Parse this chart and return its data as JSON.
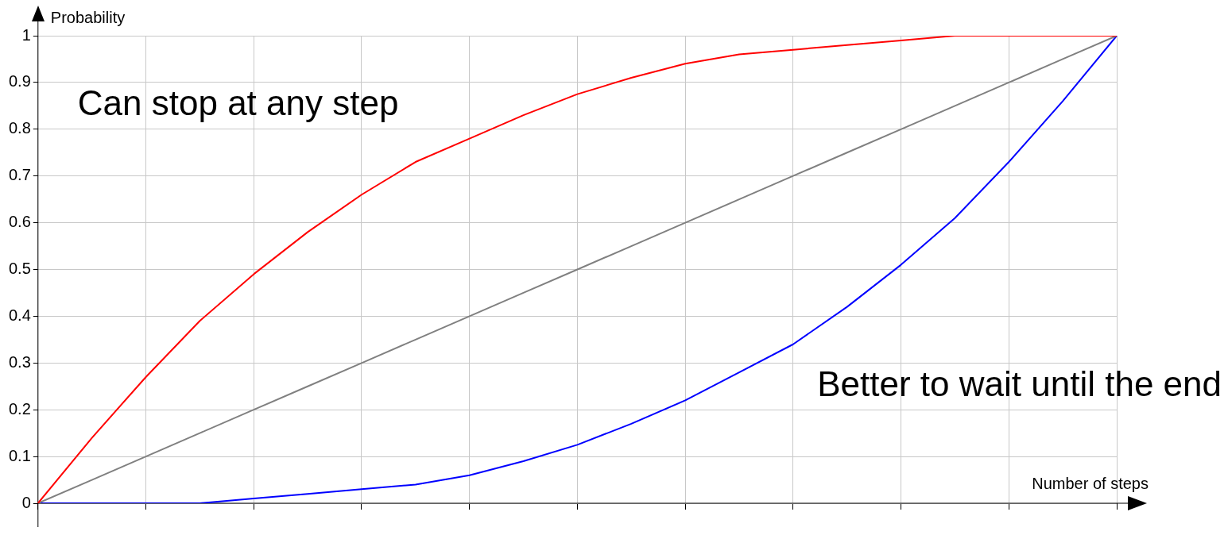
{
  "chart_data": {
    "type": "line",
    "ylabel": "Probability",
    "xlabel": "Number of steps",
    "categories": [
      null,
      null,
      null,
      null,
      null,
      null,
      null,
      null,
      null,
      null,
      null,
      null,
      null,
      null,
      null,
      null,
      null,
      null,
      null,
      null,
      null
    ],
    "series": [
      {
        "color": "#ff0000",
        "values": [
          0,
          0.14,
          0.27,
          0.39,
          0.49,
          0.58,
          0.66,
          0.73,
          0.78,
          0.83,
          0.875,
          0.91,
          0.94,
          0.96,
          0.97,
          0.98,
          0.99,
          1,
          1,
          1,
          1
        ]
      },
      {
        "color": "#808080",
        "values": [
          0,
          0.05,
          0.1,
          0.15,
          0.2,
          0.25,
          0.3,
          0.35,
          0.4,
          0.45,
          0.5,
          0.55,
          0.6,
          0.65,
          0.7,
          0.75,
          0.8,
          0.85,
          0.9,
          0.95,
          1
        ]
      },
      {
        "color": "#0000ff",
        "values": [
          0,
          0,
          0,
          0,
          0.01,
          0.02,
          0.03,
          0.04,
          0.06,
          0.09,
          0.125,
          0.17,
          0.22,
          0.28,
          0.34,
          0.42,
          0.51,
          0.61,
          0.73,
          0.86,
          1
        ]
      }
    ],
    "ylim": [
      0,
      1
    ],
    "yticks": [
      {
        "value": 0,
        "label": "0"
      },
      0.1,
      0.2,
      0.3,
      0.4,
      0.5,
      0.6,
      0.7,
      0.8,
      0.9,
      1
    ],
    "annotations": [
      "Can stop at any step",
      "Better to wait until the end"
    ],
    "grid": true,
    "legend": false,
    "tick_labels": "y",
    "marker": "none",
    "line_style": "solid"
  }
}
